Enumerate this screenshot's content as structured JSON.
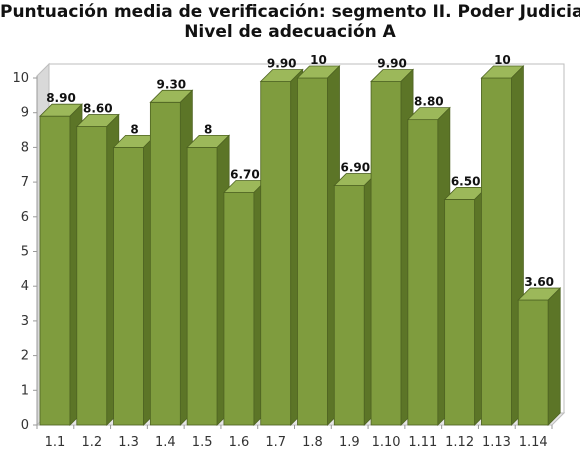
{
  "chart_data": {
    "type": "bar",
    "title_line1": "Puntuación media de verificación: segmento II. Poder Judicial.",
    "title_line2": "Nivel de adecuación A",
    "categories": [
      "1.1",
      "1.2",
      "1.3",
      "1.4",
      "1.5",
      "1.6",
      "1.7",
      "1.8",
      "1.9",
      "1.10",
      "1.11",
      "1.12",
      "1.13",
      "1.14"
    ],
    "values": [
      8.9,
      8.6,
      8,
      9.3,
      8,
      6.7,
      9.9,
      10,
      6.9,
      9.9,
      8.8,
      6.5,
      10,
      3.6
    ],
    "value_labels": [
      "8.90",
      "8.60",
      "8",
      "9.30",
      "8",
      "6.70",
      "9.90",
      "10",
      "6.90",
      "9.90",
      "8.80",
      "6.50",
      "10",
      "3.60"
    ],
    "yticks": [
      "0",
      "1",
      "2",
      "3",
      "4",
      "5",
      "6",
      "7",
      "8",
      "9",
      "10"
    ],
    "ylim": [
      0,
      10
    ],
    "grid": false,
    "style": "3d",
    "bar_color": "#7f9c3e"
  }
}
